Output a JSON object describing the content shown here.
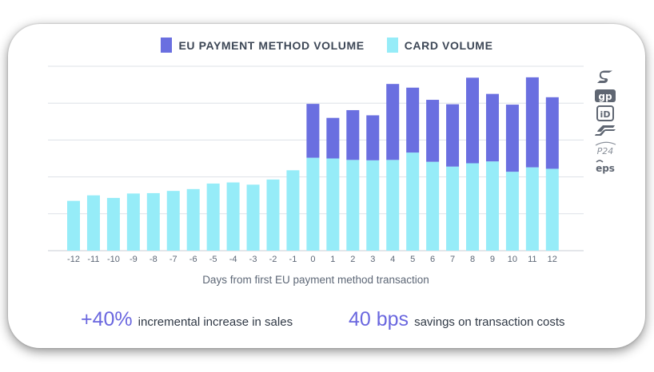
{
  "legend": [
    {
      "label": "EU PAYMENT METHOD VOLUME",
      "color": "#6a6fe0"
    },
    {
      "label": "CARD VOLUME",
      "color": "#96ecf8"
    }
  ],
  "stats": [
    {
      "value": "+40%",
      "text": "incremental increase in sales"
    },
    {
      "value": "40 bps",
      "text": "savings on transaction costs"
    }
  ],
  "payment_icons": [
    "sofort-icon",
    "giropay-icon",
    "ideal-icon",
    "bancontact-icon",
    "p24-icon",
    "eps-icon"
  ],
  "payment_icon_labels": {
    "giropay": "gp",
    "ideal": "iD",
    "p24": "P24",
    "eps": "eps"
  },
  "chart_data": {
    "type": "bar",
    "stacked": true,
    "title": "",
    "xlabel": "Days from first EU payment method transaction",
    "ylabel": "",
    "categories": [
      "-12",
      "-11",
      "-10",
      "-9",
      "-8",
      "-7",
      "-6",
      "-5",
      "-4",
      "-3",
      "-2",
      "-1",
      "0",
      "1",
      "2",
      "3",
      "4",
      "5",
      "6",
      "7",
      "8",
      "9",
      "10",
      "11",
      "12"
    ],
    "ylim": [
      0,
      5
    ],
    "y_ticks_labeled": false,
    "grid": true,
    "legend_position": "top",
    "series": [
      {
        "name": "CARD VOLUME",
        "color": "#96ecf8",
        "values": [
          1.35,
          1.5,
          1.43,
          1.55,
          1.56,
          1.62,
          1.67,
          1.82,
          1.85,
          1.79,
          1.93,
          2.18,
          2.52,
          2.5,
          2.46,
          2.45,
          2.46,
          2.66,
          2.41,
          2.28,
          2.37,
          2.42,
          2.14,
          2.26,
          2.22
        ]
      },
      {
        "name": "EU PAYMENT METHOD VOLUME",
        "color": "#6a6fe0",
        "values": [
          0,
          0,
          0,
          0,
          0,
          0,
          0,
          0,
          0,
          0,
          0,
          0,
          1.46,
          1.1,
          1.35,
          1.22,
          2.06,
          1.76,
          1.68,
          1.69,
          2.32,
          1.83,
          1.82,
          2.44,
          1.94
        ]
      }
    ]
  }
}
